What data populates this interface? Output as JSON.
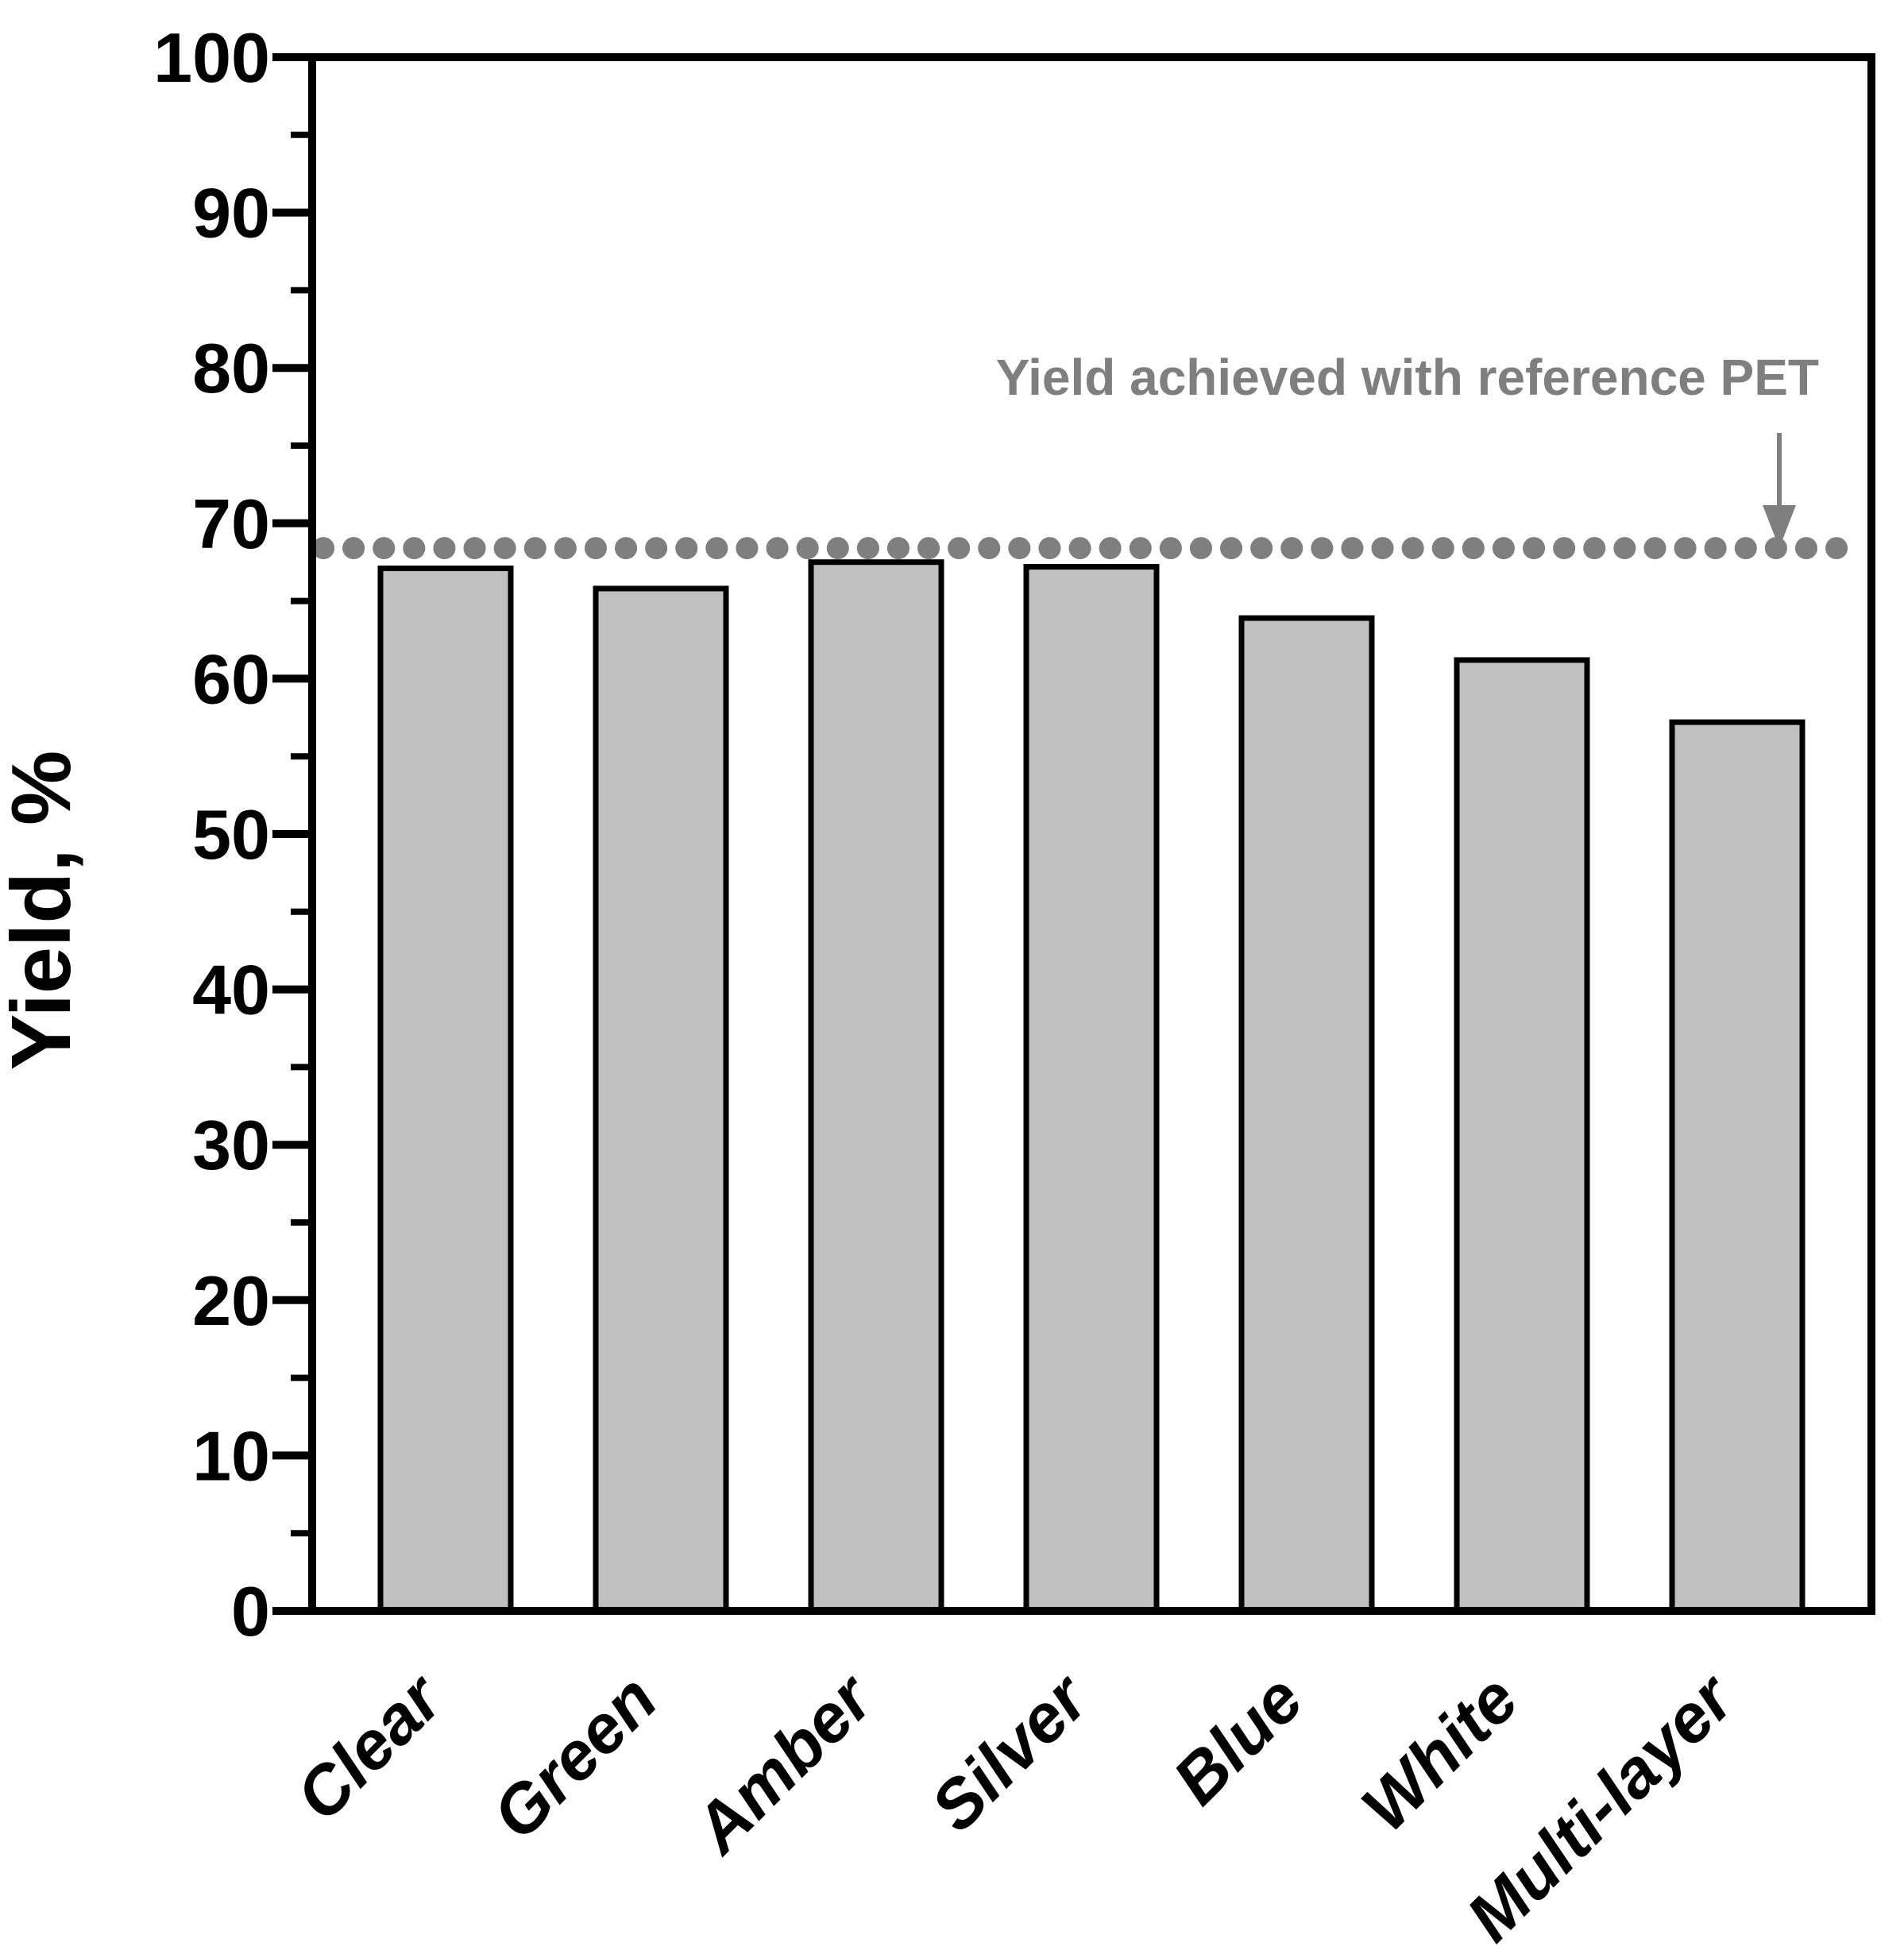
{
  "chart_data": {
    "type": "bar",
    "title": "",
    "xlabel": "",
    "ylabel": "Yield, %",
    "categories": [
      "Clear",
      "Green",
      "Amber",
      "Silver",
      "Blue",
      "White",
      "Multi-layer"
    ],
    "values": [
      67.1,
      65.8,
      67.5,
      67.2,
      63.9,
      61.2,
      57.2
    ],
    "ylim": [
      0,
      100
    ],
    "ytick_step": 10,
    "ytick_labels": [
      "0",
      "10",
      "20",
      "30",
      "40",
      "50",
      "60",
      "70",
      "80",
      "90",
      "100"
    ],
    "minor_tick_step": 5,
    "grid": false,
    "legend": false,
    "bar_color": "#c0c0c0",
    "bar_edge_color": "#000000",
    "axis_color": "#000000",
    "reference_line": {
      "value": 68.4,
      "style": "dotted",
      "color": "#7f7f7f",
      "label": "Yield achieved with reference PET",
      "arrow": "down-arrow-icon"
    }
  }
}
